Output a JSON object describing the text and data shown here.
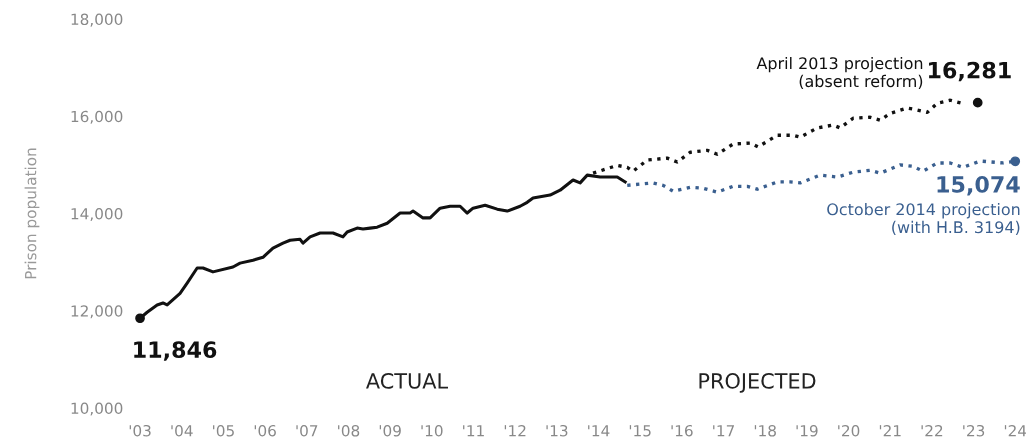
{
  "chart_data": {
    "type": "line",
    "ylabel": "Prison population",
    "xlim": [
      2003,
      2024
    ],
    "ylim": [
      10000,
      18000
    ],
    "xticks": [
      {
        "value": 2003,
        "label": "'03"
      },
      {
        "value": 2004,
        "label": "'04"
      },
      {
        "value": 2005,
        "label": "'05"
      },
      {
        "value": 2006,
        "label": "'06"
      },
      {
        "value": 2007,
        "label": "'07"
      },
      {
        "value": 2008,
        "label": "'08"
      },
      {
        "value": 2009,
        "label": "'09"
      },
      {
        "value": 2010,
        "label": "'10"
      },
      {
        "value": 2011,
        "label": "'11"
      },
      {
        "value": 2012,
        "label": "'12"
      },
      {
        "value": 2013,
        "label": "'13"
      },
      {
        "value": 2014,
        "label": "'14"
      },
      {
        "value": 2015,
        "label": "'15"
      },
      {
        "value": 2016,
        "label": "'16"
      },
      {
        "value": 2017,
        "label": "'17"
      },
      {
        "value": 2018,
        "label": "'18"
      },
      {
        "value": 2019,
        "label": "'19"
      },
      {
        "value": 2020,
        "label": "'20"
      },
      {
        "value": 2021,
        "label": "'21"
      },
      {
        "value": 2022,
        "label": "'22"
      },
      {
        "value": 2023,
        "label": "'23"
      },
      {
        "value": 2024,
        "label": "'24"
      }
    ],
    "yticks": [
      {
        "value": 10000,
        "label": "10,000"
      },
      {
        "value": 12000,
        "label": "12,000"
      },
      {
        "value": 14000,
        "label": "14,000"
      },
      {
        "value": 16000,
        "label": "16,000"
      },
      {
        "value": 18000,
        "label": "18,000"
      }
    ],
    "grid": false,
    "legend": false,
    "marker": "none",
    "series": [
      {
        "color": "#111111",
        "line_style": "solid",
        "x": [
          2003.0,
          2003.17,
          2003.41,
          2003.55,
          2003.65,
          2003.96,
          2004.13,
          2004.37,
          2004.51,
          2004.75,
          2005.23,
          2005.4,
          2005.71,
          2005.95,
          2006.19,
          2006.43,
          2006.6,
          2006.84,
          2006.91,
          2007.08,
          2007.32,
          2007.63,
          2007.87,
          2007.97,
          2008.21,
          2008.35,
          2008.52,
          2008.69,
          2008.93,
          2009.24,
          2009.48,
          2009.55,
          2009.79,
          2009.96,
          2010.2,
          2010.44,
          2010.68,
          2010.85,
          2010.99,
          2011.28,
          2011.57,
          2011.81,
          2012.12,
          2012.29,
          2012.43,
          2012.84,
          2013.08,
          2013.39,
          2013.56,
          2013.73,
          2014.04,
          2014.45,
          2014.64
        ],
        "values": [
          11846,
          11970,
          12120,
          12160,
          12120,
          12360,
          12570,
          12880,
          12880,
          12800,
          12900,
          12980,
          13040,
          13100,
          13290,
          13390,
          13450,
          13470,
          13390,
          13520,
          13600,
          13600,
          13520,
          13620,
          13700,
          13680,
          13700,
          13720,
          13800,
          14010,
          14010,
          14050,
          13910,
          13910,
          14110,
          14150,
          14150,
          14010,
          14110,
          14170,
          14090,
          14050,
          14150,
          14230,
          14320,
          14380,
          14480,
          14690,
          14630,
          14790,
          14750,
          14750,
          14650
        ]
      },
      {
        "name": "April 2013 projection\n(absent reform)",
        "color": "#111111",
        "line_style": "dotted",
        "x": [
          2013.87,
          2014.45,
          2014.69,
          2014.83,
          2015.17,
          2015.65,
          2015.89,
          2016.2,
          2016.61,
          2016.85,
          2017.23,
          2017.64,
          2017.83,
          2018.29,
          2018.67,
          2018.84,
          2019.25,
          2019.63,
          2019.8,
          2020.11,
          2020.52,
          2020.76,
          2021.0,
          2021.41,
          2021.65,
          2021.89,
          2022.13,
          2022.44,
          2022.8
        ],
        "values": [
          14830,
          14990,
          14950,
          14870,
          15100,
          15140,
          15060,
          15260,
          15300,
          15220,
          15430,
          15450,
          15370,
          15610,
          15610,
          15570,
          15760,
          15820,
          15760,
          15960,
          15980,
          15920,
          16060,
          16170,
          16130,
          16080,
          16270,
          16330,
          16250
        ]
      },
      {
        "name": "October 2014 projection\n(with H.B. 3194)",
        "color": "#3a5f8f",
        "line_style": "dotted",
        "x": [
          2014.69,
          2015.31,
          2015.55,
          2015.79,
          2016.2,
          2016.51,
          2016.85,
          2017.23,
          2017.57,
          2017.81,
          2018.29,
          2018.6,
          2018.84,
          2019.32,
          2019.73,
          2020.11,
          2020.52,
          2020.76,
          2021.24,
          2021.55,
          2021.79,
          2022.13,
          2022.44,
          2022.75,
          2023.16,
          2023.71,
          2024.0
        ],
        "values": [
          14580,
          14630,
          14580,
          14460,
          14540,
          14520,
          14440,
          14560,
          14560,
          14500,
          14650,
          14650,
          14630,
          14790,
          14750,
          14850,
          14890,
          14830,
          15000,
          14970,
          14870,
          15040,
          15040,
          14950,
          15080,
          15040,
          15074
        ]
      }
    ],
    "annotations": [
      {
        "text": "11,846",
        "x": 2003.0,
        "y": 11846
      },
      {
        "text": "16,281",
        "x": 2023.1,
        "y": 16281
      },
      {
        "text": "15,074",
        "x": 2024.0,
        "y": 15074
      },
      "ACTUAL",
      "PROJECTED"
    ]
  }
}
